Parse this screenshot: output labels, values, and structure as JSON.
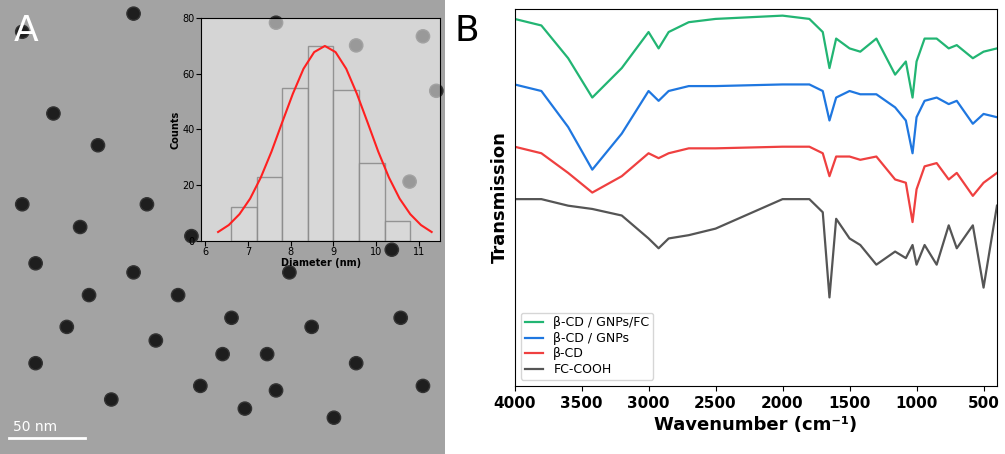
{
  "image": {
    "annotations": [
      "A",
      "50 nm"
    ]
  },
  "chart_data": [
    {
      "type": "histogram",
      "x_label": "Diameter (nm)",
      "y_label": "Counts",
      "bins": [
        6.6,
        7.2,
        7.8,
        8.4,
        9.0,
        9.6,
        10.2,
        10.8
      ],
      "values": [
        12,
        23,
        55,
        70,
        54,
        28,
        7
      ],
      "color": "#d9d9d9",
      "xlim": [
        5.9,
        11.5
      ],
      "xticks": [
        6,
        7,
        8,
        9,
        10,
        11
      ],
      "ylim": [
        0,
        80
      ],
      "yticks": [
        0,
        20,
        40,
        60,
        80
      ],
      "overlay": {
        "type": "line",
        "color": "#ff2020",
        "x": [
          6.3,
          6.55,
          6.8,
          7.05,
          7.3,
          7.55,
          7.8,
          8.05,
          8.3,
          8.55,
          8.8,
          9.05,
          9.3,
          9.55,
          9.8,
          10.05,
          10.3,
          10.55,
          10.8,
          11.05,
          11.3
        ],
        "values": [
          3.1,
          5.6,
          9.5,
          15.1,
          22.7,
          32.0,
          42.5,
          52.8,
          61.8,
          67.8,
          70,
          67.8,
          61.8,
          52.8,
          42.5,
          32.0,
          22.7,
          15.1,
          9.5,
          5.6,
          3.1
        ]
      }
    },
    {
      "type": "line",
      "annotations": [
        "B"
      ],
      "x_label": "Wavenumber (cm⁻¹)",
      "y_label": "Transmission",
      "x": [
        4000,
        3800,
        3600,
        3420,
        3200,
        3000,
        2925,
        2850,
        2700,
        2500,
        2000,
        1800,
        1700,
        1650,
        1600,
        1500,
        1420,
        1300,
        1160,
        1080,
        1030,
        1000,
        940,
        850,
        760,
        700,
        580,
        500,
        400
      ],
      "series": [
        {
          "name": "β-CD / GNPs/FC",
          "color": "#22b573",
          "values": [
            97,
            95,
            85,
            73,
            82,
            93,
            88,
            93,
            96,
            97,
            98,
            97,
            93,
            82,
            91,
            88,
            87,
            91,
            80,
            84,
            73,
            84,
            91,
            91,
            88,
            89,
            85,
            87,
            88
          ]
        },
        {
          "name": "β-CD / GNPs",
          "color": "#1f77e0",
          "values": [
            77,
            75,
            64,
            51,
            62,
            75,
            72,
            75,
            76.5,
            76.5,
            77,
            77,
            75,
            66,
            73,
            75,
            74,
            74,
            70,
            66,
            56,
            67,
            72,
            73,
            71,
            72,
            65,
            68,
            67
          ]
        },
        {
          "name": "β-CD",
          "color": "#ef4040",
          "values": [
            58,
            56,
            50,
            44,
            49,
            56,
            54.5,
            56,
            57.5,
            57.5,
            58,
            58,
            56,
            49,
            55,
            55,
            54,
            55,
            48,
            47,
            35,
            45,
            52,
            53,
            48,
            50,
            43,
            47,
            50
          ]
        },
        {
          "name": "FC-COOH",
          "color": "#555555",
          "values": [
            42,
            42,
            40,
            39,
            37,
            30,
            27,
            30,
            31,
            33,
            42,
            42,
            38,
            12,
            36,
            30,
            28,
            22,
            26,
            24,
            28,
            22,
            28,
            22,
            34,
            27,
            34,
            15,
            40
          ]
        }
      ],
      "xlim": [
        4000,
        400
      ],
      "xticks": [
        4000,
        3500,
        3000,
        2500,
        2000,
        1500,
        1000,
        500
      ],
      "ylim": [
        -15,
        100
      ],
      "tick_labels": "x",
      "legend": "lower left"
    }
  ]
}
